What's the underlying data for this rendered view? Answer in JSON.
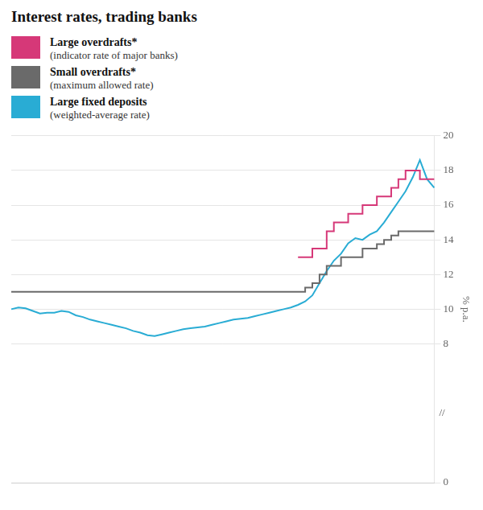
{
  "chart_data": {
    "type": "line",
    "title": "Interest rates, trading banks",
    "ylabel": "% p.a.",
    "categories": [
      null,
      null,
      null,
      null,
      null,
      null,
      null,
      null,
      null,
      null,
      null,
      null,
      null,
      null,
      null,
      null,
      null,
      null,
      null,
      null,
      null,
      null,
      null,
      null,
      null,
      null,
      null,
      null,
      null,
      null,
      null,
      null,
      null,
      null,
      null,
      null,
      null,
      null,
      null,
      null,
      null,
      null,
      null,
      null,
      null,
      null,
      null,
      null,
      null,
      null,
      null,
      null,
      null,
      null,
      null,
      null,
      null,
      null,
      null,
      null
    ],
    "series": [
      {
        "name": "Large overdrafts*",
        "sublabel": "(indicator rate of major banks)",
        "color": "#d63878",
        "line_style": "steps",
        "values": [
          null,
          null,
          null,
          null,
          null,
          null,
          null,
          null,
          null,
          null,
          null,
          null,
          null,
          null,
          null,
          null,
          null,
          null,
          null,
          null,
          null,
          null,
          null,
          null,
          null,
          null,
          null,
          null,
          null,
          null,
          null,
          null,
          null,
          null,
          null,
          null,
          null,
          null,
          null,
          null,
          13.0,
          13.0,
          13.0,
          13.5,
          13.5,
          14.5,
          15.0,
          15.0,
          15.5,
          15.5,
          16.0,
          16.0,
          16.5,
          16.5,
          17.0,
          17.5,
          18.0,
          18.0,
          17.5,
          17.5
        ]
      },
      {
        "name": "Small overdrafts*",
        "sublabel": "(maximum allowed rate)",
        "color": "#6a6a6a",
        "line_style": "steps",
        "values": [
          11.0,
          11.0,
          11.0,
          11.0,
          11.0,
          11.0,
          11.0,
          11.0,
          11.0,
          11.0,
          11.0,
          11.0,
          11.0,
          11.0,
          11.0,
          11.0,
          11.0,
          11.0,
          11.0,
          11.0,
          11.0,
          11.0,
          11.0,
          11.0,
          11.0,
          11.0,
          11.0,
          11.0,
          11.0,
          11.0,
          11.0,
          11.0,
          11.0,
          11.0,
          11.0,
          11.0,
          11.0,
          11.0,
          11.0,
          11.0,
          11.0,
          11.0,
          11.25,
          11.5,
          12.0,
          12.5,
          12.5,
          13.0,
          13.0,
          13.0,
          13.5,
          13.5,
          13.75,
          14.0,
          14.25,
          14.5,
          14.5,
          14.5,
          14.5,
          14.5
        ]
      },
      {
        "name": "Large fixed deposits",
        "sublabel": "(weighted-average rate)",
        "color": "#29acd4",
        "line_style": "solid",
        "values": [
          10.0,
          10.1,
          10.05,
          9.9,
          9.75,
          9.8,
          9.8,
          9.9,
          9.85,
          9.65,
          9.55,
          9.4,
          9.3,
          9.2,
          9.1,
          9.0,
          8.9,
          8.75,
          8.65,
          8.5,
          8.45,
          8.55,
          8.65,
          8.75,
          8.85,
          8.9,
          8.95,
          9.0,
          9.1,
          9.2,
          9.3,
          9.4,
          9.45,
          9.5,
          9.6,
          9.7,
          9.8,
          9.9,
          10.0,
          10.1,
          10.25,
          10.45,
          10.8,
          11.5,
          12.2,
          12.8,
          13.2,
          13.8,
          14.1,
          14.0,
          14.3,
          14.5,
          15.0,
          15.6,
          16.2,
          16.8,
          17.6,
          18.6,
          17.5,
          17.0
        ]
      }
    ],
    "ylim": [
      0,
      20
    ],
    "yticks": [
      0,
      8,
      10,
      12,
      14,
      16,
      18,
      20
    ],
    "annotations": [
      "//"
    ],
    "grid": true,
    "legend": "top",
    "tick_labels": "y"
  }
}
